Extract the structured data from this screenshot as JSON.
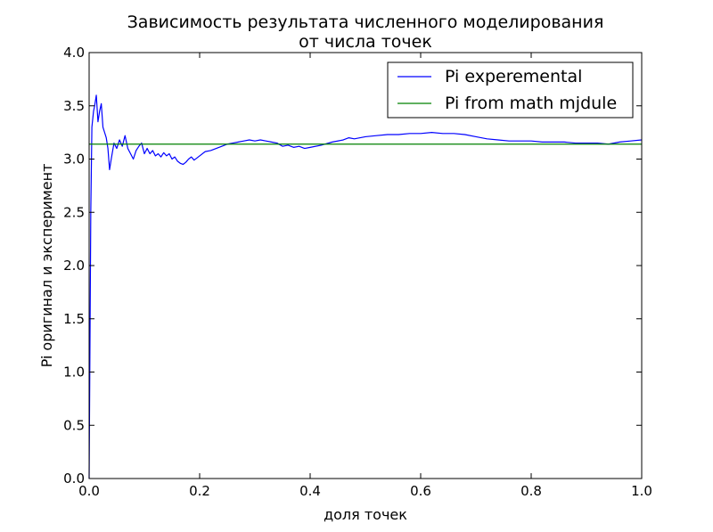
{
  "chart_data": {
    "type": "line",
    "title": [
      "Зависимость результата численного моделирования",
      "от числа точек"
    ],
    "xlabel": "доля точек",
    "ylabel": "Pi оригинал и эксперимент",
    "xlim": [
      0.0,
      1.0
    ],
    "ylim": [
      0.0,
      4.0
    ],
    "xticks": [
      "0.0",
      "0.2",
      "0.4",
      "0.6",
      "0.8",
      "1.0"
    ],
    "yticks": [
      "0.0",
      "0.5",
      "1.0",
      "1.5",
      "2.0",
      "2.5",
      "3.0",
      "3.5",
      "4.0"
    ],
    "grid": false,
    "legend_position": "top-right",
    "series": [
      {
        "name": "Pi experemental",
        "color": "#0000ff",
        "x": [
          0.0,
          0.003,
          0.005,
          0.008,
          0.01,
          0.013,
          0.016,
          0.019,
          0.022,
          0.025,
          0.028,
          0.031,
          0.034,
          0.037,
          0.04,
          0.045,
          0.05,
          0.055,
          0.06,
          0.065,
          0.07,
          0.075,
          0.08,
          0.085,
          0.09,
          0.095,
          0.1,
          0.105,
          0.11,
          0.115,
          0.12,
          0.125,
          0.13,
          0.135,
          0.14,
          0.145,
          0.15,
          0.155,
          0.16,
          0.165,
          0.17,
          0.175,
          0.18,
          0.185,
          0.19,
          0.2,
          0.21,
          0.22,
          0.23,
          0.24,
          0.25,
          0.26,
          0.27,
          0.28,
          0.29,
          0.3,
          0.31,
          0.32,
          0.33,
          0.34,
          0.35,
          0.36,
          0.37,
          0.38,
          0.39,
          0.4,
          0.42,
          0.44,
          0.46,
          0.47,
          0.48,
          0.5,
          0.52,
          0.54,
          0.56,
          0.58,
          0.6,
          0.62,
          0.64,
          0.66,
          0.68,
          0.7,
          0.72,
          0.74,
          0.76,
          0.78,
          0.8,
          0.82,
          0.84,
          0.86,
          0.88,
          0.9,
          0.92,
          0.94,
          0.96,
          0.98,
          1.0
        ],
        "y": [
          0.0,
          2.5,
          3.3,
          3.45,
          3.5,
          3.6,
          3.35,
          3.45,
          3.52,
          3.3,
          3.25,
          3.2,
          3.1,
          2.9,
          3.0,
          3.15,
          3.1,
          3.18,
          3.12,
          3.22,
          3.1,
          3.05,
          3.0,
          3.08,
          3.12,
          3.15,
          3.05,
          3.1,
          3.05,
          3.08,
          3.03,
          3.05,
          3.02,
          3.06,
          3.03,
          3.05,
          3.0,
          3.02,
          2.98,
          2.96,
          2.95,
          2.97,
          3.0,
          3.02,
          2.99,
          3.03,
          3.07,
          3.08,
          3.1,
          3.12,
          3.14,
          3.15,
          3.16,
          3.17,
          3.18,
          3.17,
          3.18,
          3.17,
          3.16,
          3.15,
          3.12,
          3.13,
          3.11,
          3.12,
          3.1,
          3.11,
          3.13,
          3.16,
          3.18,
          3.2,
          3.19,
          3.21,
          3.22,
          3.23,
          3.23,
          3.24,
          3.24,
          3.25,
          3.24,
          3.24,
          3.23,
          3.21,
          3.19,
          3.18,
          3.17,
          3.17,
          3.17,
          3.16,
          3.16,
          3.16,
          3.15,
          3.15,
          3.15,
          3.14,
          3.16,
          3.17,
          3.18
        ]
      },
      {
        "name": "Pi from math mjdule",
        "color": "#008000",
        "x": [
          0.0,
          1.0
        ],
        "y": [
          3.14,
          3.14
        ]
      }
    ]
  }
}
